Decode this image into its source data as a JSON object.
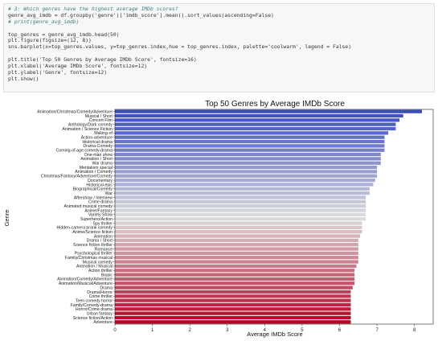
{
  "code_cell": {
    "lines": [
      {
        "text": "# 3: Which genres have the highest average IMDb scores?",
        "kind": "comment"
      },
      {
        "text": "genre_avg_imdb = df.groupby('genre')['imdb_score'].mean().sort_values(ascending=False)",
        "kind": "code"
      },
      {
        "text": "# print(genre_avg_imdb)",
        "kind": "comment"
      },
      {
        "text": "",
        "kind": "blank"
      },
      {
        "text": "top_genres = genre_avg_imdb.head(50)",
        "kind": "code"
      },
      {
        "text": "plt.figure(figsize=(12, 8))",
        "kind": "code"
      },
      {
        "text": "sns.barplot(x=top_genres.values, y=top_genres.index,hue = top_genres.index, palette='coolwarm', legend = False)",
        "kind": "code"
      },
      {
        "text": "",
        "kind": "blank"
      },
      {
        "text": "plt.title('Top 50 Genres by Average IMDb Score', fontsize=16)",
        "kind": "code"
      },
      {
        "text": "plt.xlabel('Average IMDb Score', fontsize=12)",
        "kind": "code"
      },
      {
        "text": "plt.ylabel('Genre', fontsize=12)",
        "kind": "code"
      },
      {
        "text": "plt.show()",
        "kind": "code"
      }
    ]
  },
  "chart_data": {
    "type": "bar",
    "orientation": "horizontal",
    "title": "Top 50 Genres by Average IMDb Score",
    "xlabel": "Average IMDb Score",
    "ylabel": "Genre",
    "xlim": [
      0,
      8.5
    ],
    "xticks": [
      0,
      1,
      2,
      3,
      4,
      5,
      6,
      7,
      8
    ],
    "grid": false,
    "palette": "coolwarm",
    "color_start": "#3b4cc0",
    "color_mid": "#dddddd",
    "color_end": "#b40426",
    "categories": [
      "Animation/Christmas/Comedy/Adventure",
      "Musical / Short",
      "Concert Film",
      "Anthology/Dark comedy",
      "Animation / Science Fiction",
      "Making-of",
      "Action-adventure",
      "Historical drama",
      "Drama-Comedy",
      "Coming-of-age comedy-drama",
      "One-man show",
      "Animation / Short",
      "War drama",
      "Mentalism special",
      "Animation / Comedy",
      "Christmas/Fantasy/Adventure/Comedy",
      "Documentary",
      "Historical-epic",
      "Biographical/Comedy",
      "War",
      "Aftershow / Interview",
      "Crime drama",
      "Animated musical comedy",
      "Anime/Fantasy",
      "Variety Show",
      "Superhero/Action",
      "Spy thriller",
      "Hidden-camera prank comedy",
      "Anime/Science fiction",
      "Animation",
      "Drama / Short",
      "Science fiction thriller",
      "Romance",
      "Psychological thriller",
      "Family/Christmas musical",
      "Musical comedy",
      "Animation / Musical",
      "Action thriller",
      "Biopic",
      "Animation/Comedy/Adventure",
      "Animation/Musical/Adventure",
      "Drama",
      "Drama/Horror",
      "Crime thriller",
      "Teen comedy horror",
      "Family/Comedy-drama",
      "Horror/Crime drama",
      "Urban fantasy",
      "Science fiction/Action",
      "Adventure"
    ],
    "values": [
      8.2,
      7.7,
      7.6,
      7.5,
      7.5,
      7.3,
      7.2,
      7.2,
      7.2,
      7.2,
      7.1,
      7.1,
      7.1,
      7.0,
      7.0,
      7.0,
      6.95,
      6.9,
      6.8,
      6.8,
      6.7,
      6.7,
      6.7,
      6.7,
      6.7,
      6.7,
      6.6,
      6.6,
      6.6,
      6.55,
      6.5,
      6.5,
      6.5,
      6.5,
      6.5,
      6.5,
      6.45,
      6.4,
      6.4,
      6.4,
      6.4,
      6.35,
      6.3,
      6.3,
      6.3,
      6.3,
      6.3,
      6.3,
      6.3,
      6.3
    ]
  }
}
